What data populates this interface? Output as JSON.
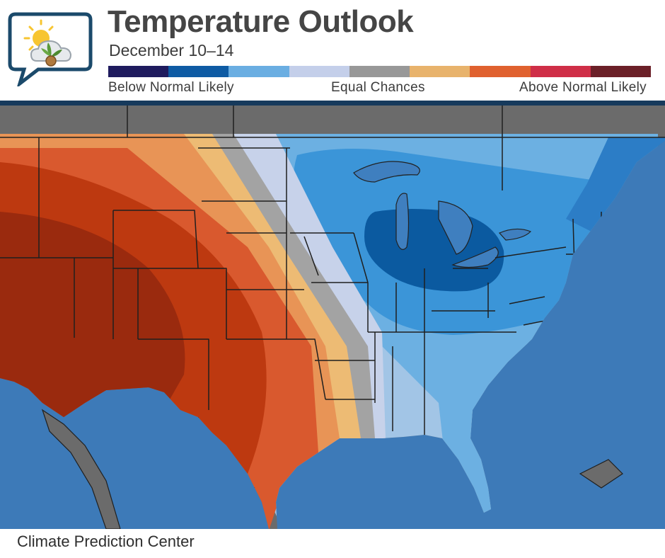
{
  "header": {
    "title": "Temperature Outlook",
    "subtitle": "December 10–14"
  },
  "legend": {
    "label_below": "Below Normal Likely",
    "label_equal": "Equal Chances",
    "label_above": "Above Normal Likely",
    "colors": [
      "#1f1b5e",
      "#0e5ba4",
      "#6aaee2",
      "#c4cfea",
      "#989898",
      "#e8b36c",
      "#e0612f",
      "#cf2e47",
      "#6b2028"
    ]
  },
  "map": {
    "colors": {
      "ocean": "#3d7ab8",
      "land_outside": "#6b6b6b",
      "above_3": "#9a2a0e",
      "above_2": "#bd3910",
      "above_1": "#d9592e",
      "above_0": "#e89456",
      "near_above": "#edbb74",
      "equal": "#a3a3a3",
      "near_below": "#c7d2ea",
      "below_0": "#a2c5e6",
      "below_1": "#6cb0e2",
      "below_2": "#3b95d8",
      "below_3": "#2c7dc6",
      "below_4": "#0b5aa0",
      "lake": "#3f7fbf"
    }
  },
  "footer": {
    "source": "Climate Prediction Center"
  }
}
